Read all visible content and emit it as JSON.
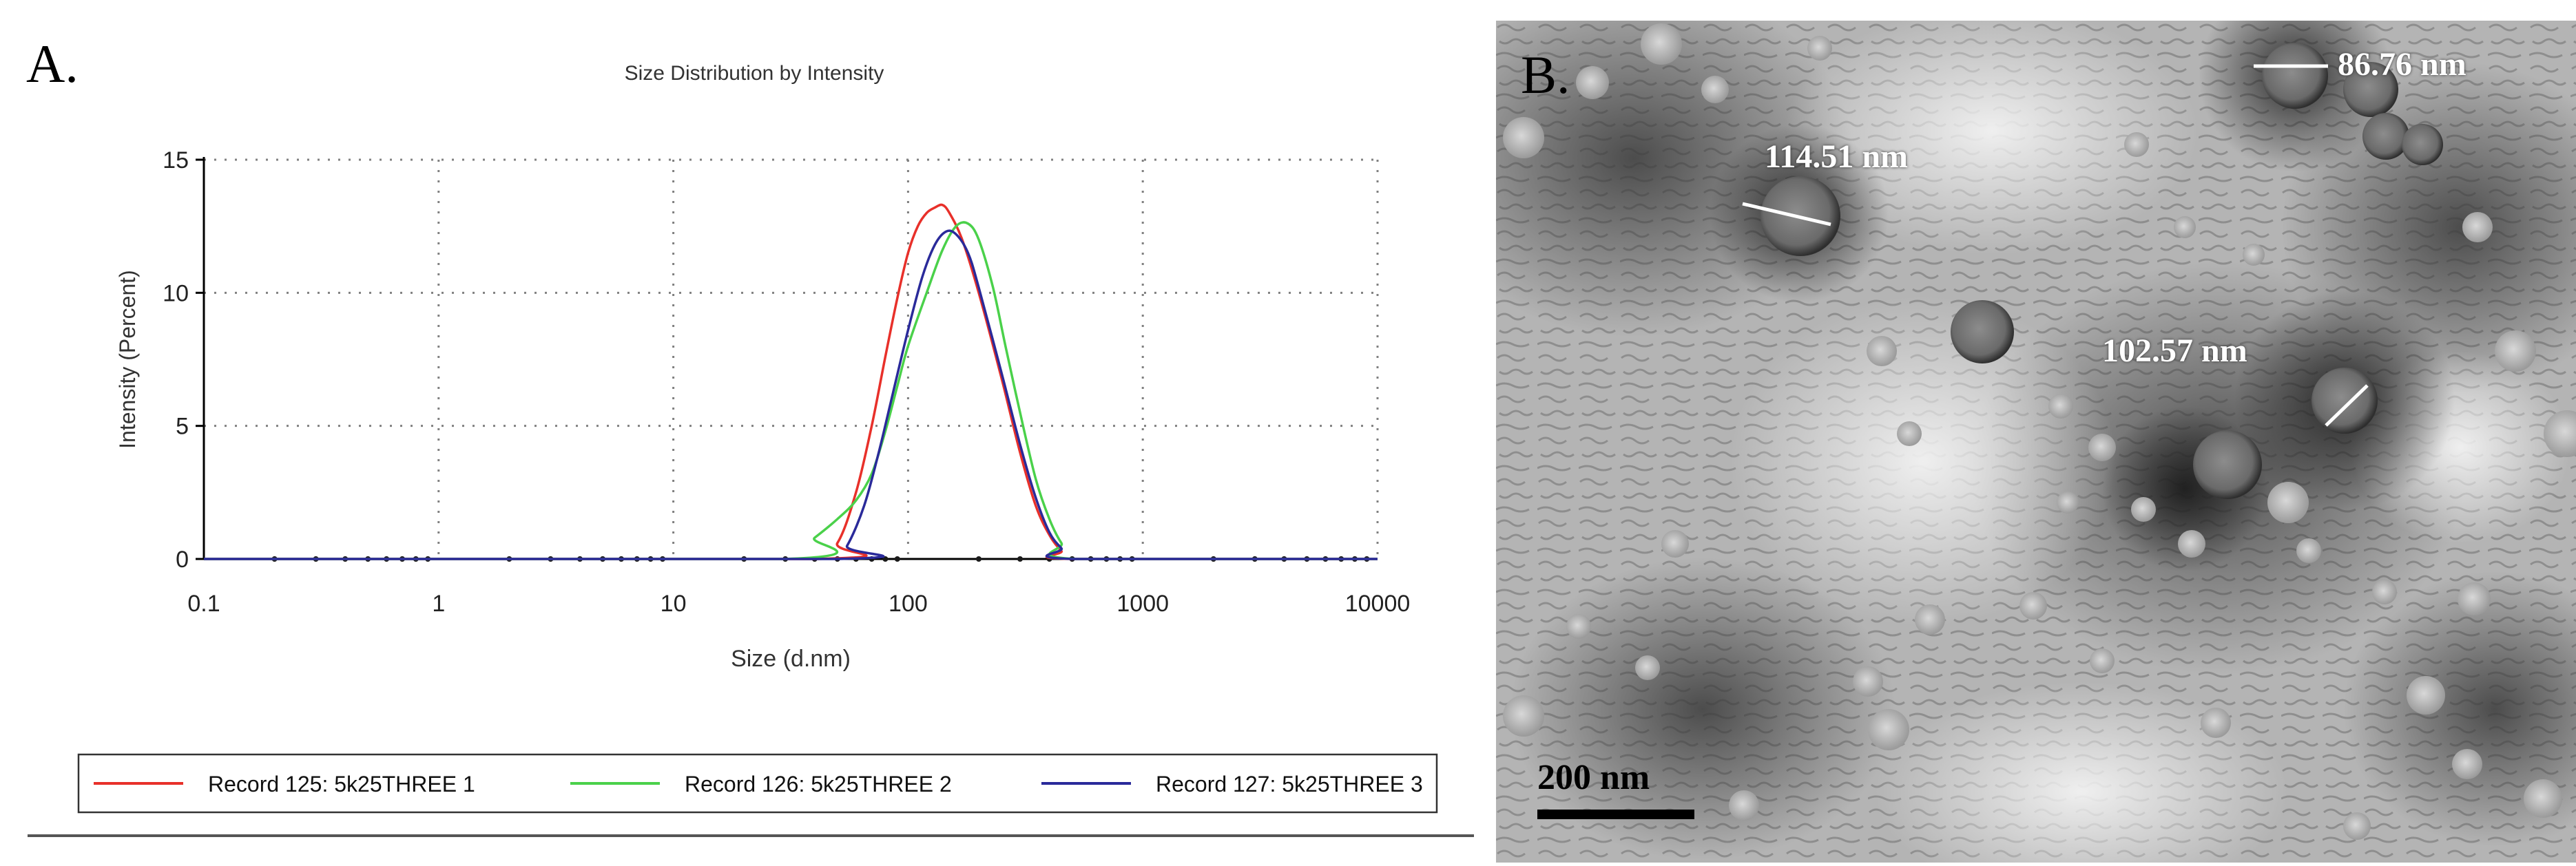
{
  "panel_a": {
    "label": "A.",
    "chart_data": {
      "type": "line",
      "title": "Size Distribution by Intensity",
      "xlabel": "Size (d.nm)",
      "ylabel": "Intensity (Percent)",
      "xscale": "log",
      "xlim": [
        0.1,
        10000
      ],
      "ylim": [
        0,
        15
      ],
      "xticks": [
        "0.1",
        "1",
        "10",
        "100",
        "1000",
        "10000"
      ],
      "yticks": [
        "0",
        "5",
        "10",
        "15"
      ],
      "grid": true,
      "legend_position": "bottom",
      "series": [
        {
          "name": "Record 125: 5k25THREE 1",
          "color": "#e8302a",
          "x": [
            0.1,
            40,
            50,
            60,
            70,
            80,
            90,
            100,
            110,
            120,
            130,
            140,
            150,
            170,
            200,
            250,
            300,
            350,
            400,
            450,
            500,
            10000
          ],
          "y": [
            0,
            0,
            0.6,
            2.5,
            5.0,
            7.6,
            9.8,
            11.5,
            12.5,
            13.0,
            13.2,
            13.3,
            13.0,
            12.0,
            10.0,
            6.8,
            4.0,
            2.0,
            0.9,
            0.3,
            0,
            0
          ]
        },
        {
          "name": "Record 126: 5k25THREE 2",
          "color": "#4ad14a",
          "x": [
            0.1,
            30,
            40,
            50,
            60,
            70,
            80,
            90,
            100,
            120,
            140,
            160,
            180,
            200,
            230,
            260,
            300,
            350,
            400,
            450,
            520,
            10000
          ],
          "y": [
            0,
            0,
            0.8,
            1.5,
            2.2,
            3.2,
            4.8,
            6.5,
            8.0,
            10.0,
            11.6,
            12.5,
            12.6,
            12.0,
            10.2,
            8.0,
            5.5,
            3.0,
            1.5,
            0.6,
            0,
            0
          ]
        },
        {
          "name": "Record 127: 5k25THREE 3",
          "color": "#2a2a9a",
          "x": [
            0.1,
            48,
            55,
            65,
            75,
            85,
            100,
            115,
            130,
            145,
            160,
            180,
            200,
            250,
            300,
            350,
            400,
            450,
            500,
            10000
          ],
          "y": [
            0,
            0,
            0.5,
            2.0,
            4.0,
            6.0,
            8.6,
            10.6,
            11.8,
            12.3,
            12.2,
            11.5,
            10.2,
            7.0,
            4.3,
            2.3,
            1.0,
            0.4,
            0,
            0
          ]
        }
      ]
    }
  },
  "panel_b": {
    "label": "B.",
    "annotations": {
      "measure1": "86.76 nm",
      "measure2": "114.51 nm",
      "measure3": "102.57 nm"
    },
    "scale_bar_label": "200 nm"
  }
}
